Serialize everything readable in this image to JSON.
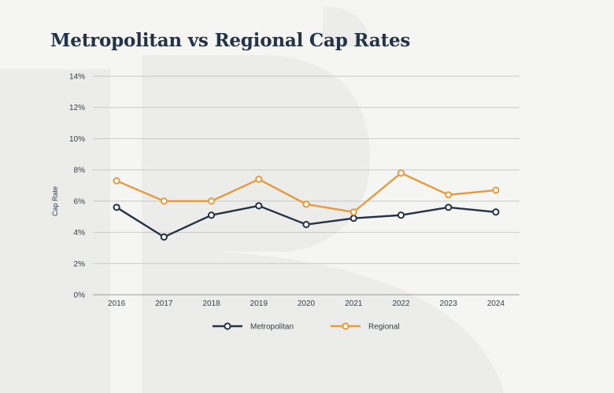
{
  "colors": {
    "background": "#f5f5f4",
    "watermark": "#ececeb",
    "metropolitan": "#243346",
    "regional": "#e59a3c",
    "grid": "#c9c9c9"
  },
  "chart_data": {
    "type": "line",
    "title": "Metropolitan vs Regional Cap Rates",
    "xlabel": "",
    "ylabel": "Cap Rate",
    "categories": [
      "2016",
      "2017",
      "2018",
      "2019",
      "2020",
      "2021",
      "2022",
      "2023",
      "2024"
    ],
    "ylim": [
      0,
      14
    ],
    "yticks": [
      "0%",
      "2%",
      "4%",
      "6%",
      "8%",
      "10%",
      "12%",
      "14%"
    ],
    "grid": "horizontal",
    "legend": "bottom-center",
    "series": [
      {
        "name": "Metropolitan",
        "color": "#243346",
        "values": [
          5.6,
          3.7,
          5.1,
          5.7,
          4.5,
          4.9,
          5.1,
          5.6,
          5.3
        ]
      },
      {
        "name": "Regional",
        "color": "#e59a3c",
        "values": [
          7.3,
          6.0,
          6.0,
          7.4,
          5.8,
          5.3,
          7.8,
          6.4,
          6.7
        ]
      }
    ]
  }
}
